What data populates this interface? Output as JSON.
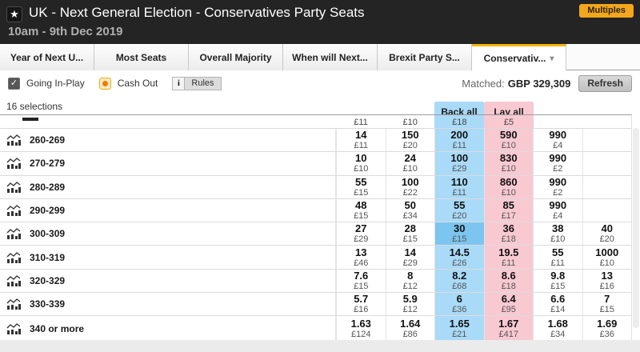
{
  "header": {
    "star_icon": "★",
    "title": "UK - Next General Election - Conservatives Party Seats",
    "subtitle": "10am - 9th Dec 2019",
    "multiples_label": "Multiples"
  },
  "tabs": [
    {
      "label": "Year of Next U...",
      "active": false
    },
    {
      "label": "Most Seats",
      "active": false
    },
    {
      "label": "Overall Majority",
      "active": false
    },
    {
      "label": "When will Next...",
      "active": false
    },
    {
      "label": "Brexit Party S...",
      "active": false
    },
    {
      "label": "Conservativ...",
      "active": true
    }
  ],
  "toolbar": {
    "checkbox_glyph": "✓",
    "going_inplay_label": "Going In-Play",
    "cashout_label": "Cash Out",
    "info_icon_label": "i",
    "rules_label": "Rules",
    "matched_label": "Matched:",
    "matched_value": "GBP 329,309",
    "refresh_label": "Refresh"
  },
  "market": {
    "selections_count_label": "16 selections",
    "back_all_label": "Back all",
    "lay_all_label": "Lay all",
    "partial_row_stakes": [
      "£11",
      "£10",
      "£18",
      "£5",
      "",
      ""
    ],
    "rows": [
      {
        "name": "260-269",
        "cells": [
          [
            "14",
            "£11"
          ],
          [
            "150",
            "£20"
          ],
          [
            "200",
            "£11"
          ],
          [
            "590",
            "£10"
          ],
          [
            "990",
            "£4"
          ],
          [
            "",
            ""
          ]
        ]
      },
      {
        "name": "270-279",
        "cells": [
          [
            "10",
            "£10"
          ],
          [
            "24",
            "£10"
          ],
          [
            "100",
            "£29"
          ],
          [
            "830",
            "£10"
          ],
          [
            "990",
            "£2"
          ],
          [
            "",
            ""
          ]
        ]
      },
      {
        "name": "280-289",
        "cells": [
          [
            "55",
            "£15"
          ],
          [
            "100",
            "£22"
          ],
          [
            "110",
            "£11"
          ],
          [
            "860",
            "£10"
          ],
          [
            "990",
            "£2"
          ],
          [
            "",
            ""
          ]
        ]
      },
      {
        "name": "290-299",
        "cells": [
          [
            "48",
            "£15"
          ],
          [
            "50",
            "£34"
          ],
          [
            "55",
            "£20"
          ],
          [
            "85",
            "£17"
          ],
          [
            "990",
            "£4"
          ],
          [
            "",
            ""
          ]
        ]
      },
      {
        "name": "300-309",
        "cells": [
          [
            "27",
            "£29"
          ],
          [
            "28",
            "£15"
          ],
          [
            "30",
            "£15"
          ],
          [
            "36",
            "£18"
          ],
          [
            "38",
            "£10"
          ],
          [
            "40",
            "£20"
          ]
        ],
        "highlight_back": true
      },
      {
        "name": "310-319",
        "cells": [
          [
            "13",
            "£46"
          ],
          [
            "14",
            "£29"
          ],
          [
            "14.5",
            "£26"
          ],
          [
            "19.5",
            "£11"
          ],
          [
            "55",
            "£11"
          ],
          [
            "1000",
            "£10"
          ]
        ]
      },
      {
        "name": "320-329",
        "cells": [
          [
            "7.6",
            "£15"
          ],
          [
            "8",
            "£12"
          ],
          [
            "8.2",
            "£68"
          ],
          [
            "8.6",
            "£18"
          ],
          [
            "9.8",
            "£15"
          ],
          [
            "13",
            "£16"
          ]
        ]
      },
      {
        "name": "330-339",
        "cells": [
          [
            "5.7",
            "£16"
          ],
          [
            "5.9",
            "£12"
          ],
          [
            "6",
            "£36"
          ],
          [
            "6.4",
            "£95"
          ],
          [
            "6.6",
            "£14"
          ],
          [
            "7",
            "£15"
          ]
        ]
      },
      {
        "name": "340 or more",
        "cells": [
          [
            "1.63",
            "£124"
          ],
          [
            "1.64",
            "£86"
          ],
          [
            "1.65",
            "£21"
          ],
          [
            "1.67",
            "£417"
          ],
          [
            "1.68",
            "£34"
          ],
          [
            "1.69",
            "£36"
          ]
        ]
      }
    ]
  },
  "colors": {
    "header_bg": "#242424",
    "accent_yellow": "#f2a71c",
    "tab_accent": "#f7b500",
    "back_blue": "#a9daf8",
    "back_blue_highlight": "#7cc5f0",
    "lay_pink": "#f9c9d2"
  }
}
